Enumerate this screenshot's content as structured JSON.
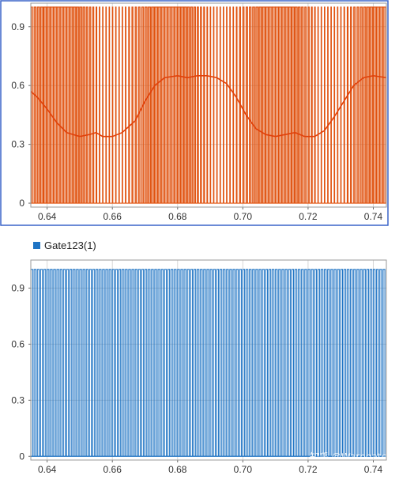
{
  "chart_data": [
    {
      "type": "line",
      "title": "",
      "xlabel": "",
      "ylabel": "",
      "xlim": [
        0.635,
        0.744
      ],
      "ylim": [
        -0.02,
        1.02
      ],
      "x_ticks": [
        0.64,
        0.66,
        0.68,
        0.7,
        0.72,
        0.74
      ],
      "x_tick_labels": [
        "0.64",
        "0.66",
        "0.68",
        "0.70",
        "0.72",
        "0.74"
      ],
      "y_ticks": [
        0,
        0.3,
        0.6,
        0.9
      ],
      "y_tick_labels": [
        "0",
        "0.3",
        "0.6",
        "0.9"
      ],
      "grid": true,
      "legend": false,
      "colors": {
        "pwm": "#e0520f",
        "envelope": "#e0400a",
        "frame_highlight": "#3a64c8"
      },
      "series": [
        {
          "kind": "pwm",
          "low": 0,
          "high": 1,
          "carrier_period": 0.001,
          "modulation_period": 0.0333,
          "x_start": 0.635,
          "x_end": 0.744
        },
        {
          "kind": "envelope",
          "x": [
            0.635,
            0.637,
            0.64,
            0.643,
            0.646,
            0.65,
            0.653,
            0.655,
            0.657,
            0.66,
            0.663,
            0.667,
            0.67,
            0.673,
            0.676,
            0.68,
            0.683,
            0.686,
            0.689,
            0.692,
            0.695,
            0.698,
            0.701,
            0.704,
            0.707,
            0.71,
            0.713,
            0.716,
            0.719,
            0.722,
            0.725,
            0.728,
            0.731,
            0.734,
            0.737,
            0.74,
            0.744
          ],
          "y": [
            0.57,
            0.54,
            0.48,
            0.41,
            0.36,
            0.34,
            0.35,
            0.36,
            0.34,
            0.34,
            0.36,
            0.42,
            0.52,
            0.6,
            0.64,
            0.65,
            0.64,
            0.65,
            0.65,
            0.64,
            0.61,
            0.54,
            0.45,
            0.38,
            0.35,
            0.34,
            0.35,
            0.36,
            0.34,
            0.34,
            0.37,
            0.44,
            0.52,
            0.6,
            0.64,
            0.65,
            0.64
          ]
        }
      ]
    },
    {
      "type": "line",
      "title": "",
      "xlabel": "",
      "ylabel": "",
      "xlim": [
        0.635,
        0.744
      ],
      "ylim": [
        -0.02,
        1.05
      ],
      "x_ticks": [
        0.64,
        0.66,
        0.68,
        0.7,
        0.72,
        0.74
      ],
      "x_tick_labels": [
        "0.64",
        "0.66",
        "0.68",
        "0.70",
        "0.72",
        "0.74"
      ],
      "y_ticks": [
        0,
        0.3,
        0.6,
        0.9
      ],
      "y_tick_labels": [
        "0",
        "0.3",
        "0.6",
        "0.9"
      ],
      "grid": true,
      "legend": true,
      "legend_position": "top-left",
      "colors": {
        "pwm": "#1f74c4"
      },
      "series": [
        {
          "name": "Gate123(1)",
          "kind": "pwm",
          "low": 0,
          "high": 1,
          "carrier_period": 0.001,
          "duty_cycle": 0.55,
          "x_start": 0.635,
          "x_end": 0.744
        }
      ]
    }
  ],
  "watermark": "知乎 @Warpgate"
}
